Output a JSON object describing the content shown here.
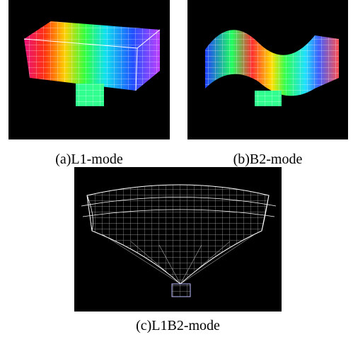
{
  "figures": [
    {
      "caption": "(a)L1-mode"
    },
    {
      "caption": "(b)B2-mode"
    },
    {
      "caption": "(c)L1B2-mode"
    }
  ]
}
